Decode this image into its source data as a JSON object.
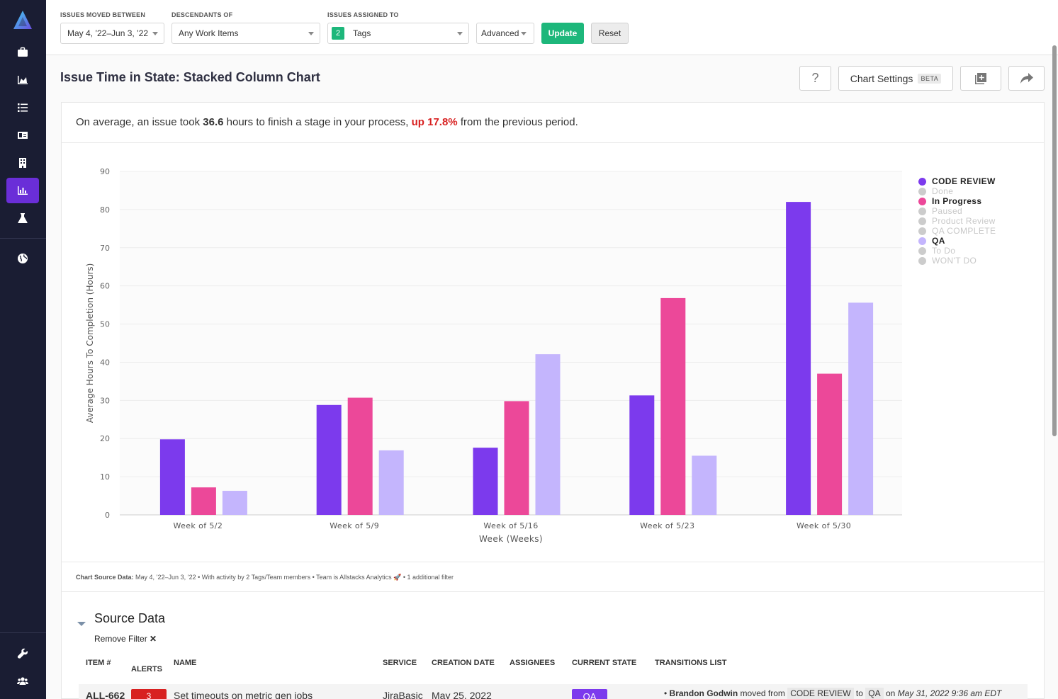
{
  "filters": {
    "moved_between": {
      "label": "ISSUES MOVED BETWEEN",
      "value": "May 4, ’22–Jun 3, ’22"
    },
    "descendants": {
      "label": "DESCENDANTS OF",
      "value": "Any Work Items"
    },
    "assigned": {
      "label": "ISSUES ASSIGNED TO",
      "count": "2",
      "value": "Tags"
    },
    "advanced": "Advanced",
    "update": "Update",
    "reset": "Reset"
  },
  "header": {
    "title": "Issue Time in State: Stacked Column Chart",
    "help": "?",
    "chart_settings": "Chart Settings",
    "beta": "BETA"
  },
  "summary": {
    "pre": "On average, an issue took ",
    "hours": "36.6",
    "mid": " hours to finish a stage in your process, ",
    "change": "up 17.8%",
    "post": " from the previous period."
  },
  "legend": [
    {
      "label": "CODE REVIEW",
      "color": "#7c3aed",
      "active": true
    },
    {
      "label": "Done",
      "color": "#cccccc",
      "active": false
    },
    {
      "label": "In Progress",
      "color": "#ec4899",
      "active": true
    },
    {
      "label": "Paused",
      "color": "#cccccc",
      "active": false
    },
    {
      "label": "Product Review",
      "color": "#cccccc",
      "active": false
    },
    {
      "label": "QA COMPLETE",
      "color": "#cccccc",
      "active": false
    },
    {
      "label": "QA",
      "color": "#c4b5fd",
      "active": true
    },
    {
      "label": "To Do",
      "color": "#cccccc",
      "active": false
    },
    {
      "label": "WON'T DO",
      "color": "#cccccc",
      "active": false
    }
  ],
  "chart_data": {
    "type": "bar",
    "title": "Issue Time in State: Stacked Column Chart",
    "xlabel": "Week (Weeks)",
    "ylabel": "Average Hours To Completion (Hours)",
    "ylim": [
      0,
      90
    ],
    "yticks": [
      0,
      10,
      20,
      30,
      40,
      50,
      60,
      70,
      80,
      90
    ],
    "categories": [
      "Week of 5/2",
      "Week of 5/9",
      "Week of 5/16",
      "Week of 5/23",
      "Week of 5/30"
    ],
    "series": [
      {
        "name": "CODE REVIEW",
        "color": "#7c3aed",
        "values": [
          19.8,
          28.8,
          17.6,
          31.3,
          82
        ]
      },
      {
        "name": "In Progress",
        "color": "#ec4899",
        "values": [
          7.2,
          30.7,
          29.8,
          56.8,
          37
        ]
      },
      {
        "name": "QA",
        "color": "#c4b5fd",
        "values": [
          6.3,
          16.9,
          42.1,
          15.5,
          55.6
        ]
      }
    ]
  },
  "source_note": {
    "label": "Chart Source Data:",
    "text": " May 4, ’22–Jun 3, ’22 • With activity by 2 Tags/Team members • Team is Allstacks Analytics 🚀 • 1 additional filter"
  },
  "source_data": {
    "title": "Source Data",
    "remove_filter": "Remove Filter",
    "columns": [
      "ITEM #",
      "ALERTS",
      "NAME",
      "SERVICE",
      "CREATION DATE",
      "ASSIGNEES",
      "CURRENT STATE",
      "TRANSITIONS LIST"
    ],
    "rows": [
      {
        "item": "ALL-662",
        "alerts": "3",
        "name": "Set timeouts on metric gen jobs",
        "service": "JiraBasic",
        "created": "May 25, 2022",
        "state": "QA",
        "transition": {
          "user": "Brandon Godwin",
          "moved": " moved from ",
          "from": "CODE REVIEW",
          "to_word": " to ",
          "to": "QA",
          "on": " on ",
          "date": "May 31, 2022 9:36 am EDT"
        }
      }
    ]
  }
}
